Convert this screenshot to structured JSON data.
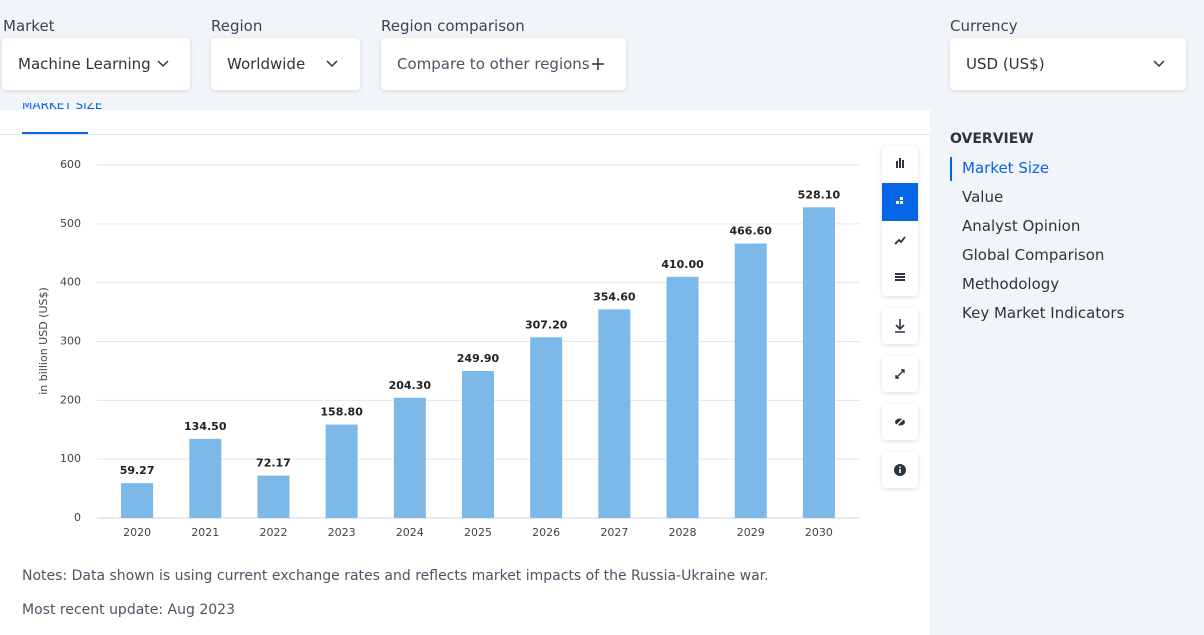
{
  "filters": [
    {
      "label": "Market",
      "value": "Machine Learning"
    },
    {
      "label": "Region",
      "value": "Worldwide"
    },
    {
      "label": "Region comparison",
      "value": "Compare to other regions"
    },
    {
      "label": "Currency",
      "value": "USD (US$)"
    }
  ],
  "tab": "MARKET SIZE",
  "chart_data": {
    "type": "bar",
    "y_label": "in billion USD (US$)",
    "categories": [
      "2020",
      "2021",
      "2022",
      "2023",
      "2024",
      "2025",
      "2026",
      "2027",
      "2028",
      "2029",
      "2030"
    ],
    "values": [
      59.27,
      134.5,
      72.17,
      158.8,
      204.3,
      249.9,
      307.2,
      354.6,
      410,
      466.6,
      528.1
    ],
    "value_labels": [
      "59.27",
      "134.50",
      "72.17",
      "158.80",
      "204.30",
      "249.90",
      "307.20",
      "354.60",
      "410.00",
      "466.60",
      "528.10"
    ],
    "color": "#7cb9e8",
    "ylim": [
      0,
      600
    ],
    "yticks": [
      0,
      100,
      200,
      300,
      400,
      500,
      600
    ],
    "grid": true
  },
  "notes": "Notes: Data shown is using current exchange rates and reflects market impacts of the Russia-Ukraine war.",
  "update": "Most recent update: Aug 2023",
  "sidebar": {
    "title": "OVERVIEW",
    "items": [
      "Market Size",
      "Value",
      "Analyst Opinion",
      "Global Comparison",
      "Methodology",
      "Key Market Indicators"
    ]
  }
}
